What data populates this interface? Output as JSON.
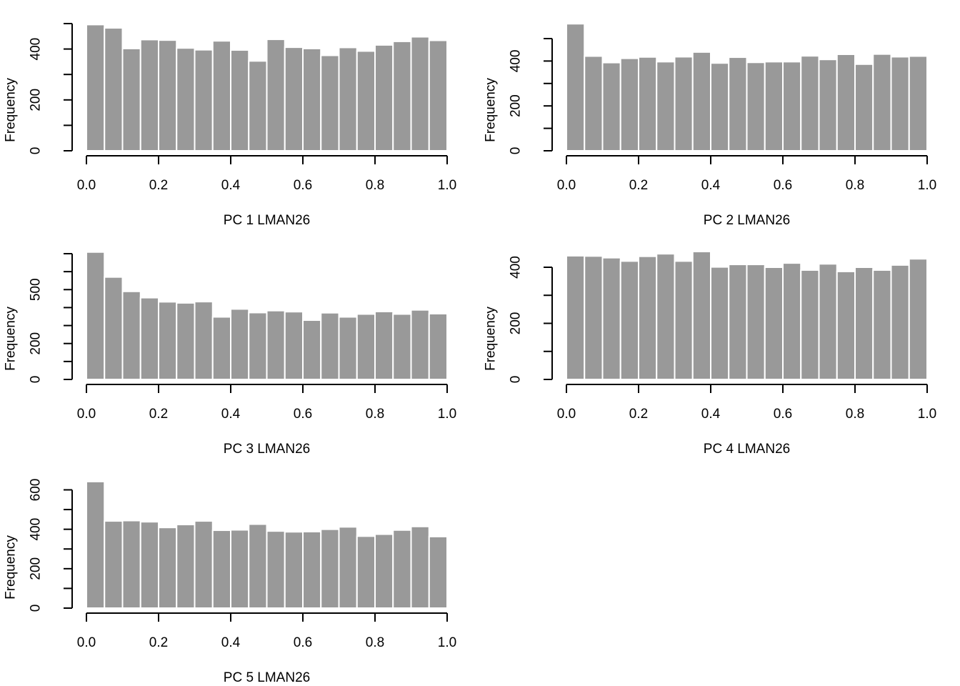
{
  "colors": {
    "bar": "#999999",
    "bar_border": "#ffffff",
    "axis": "#000000",
    "background": "#ffffff"
  },
  "chart_data": [
    {
      "type": "bar",
      "title": "",
      "xlabel": "PC 1 LMAN26",
      "ylabel": "Frequency",
      "bin_edges": [
        0.0,
        0.05,
        0.1,
        0.15,
        0.2,
        0.25,
        0.3,
        0.35,
        0.4,
        0.45,
        0.5,
        0.55,
        0.6,
        0.65,
        0.7,
        0.75,
        0.8,
        0.85,
        0.9,
        0.95,
        1.0
      ],
      "values": [
        496,
        483,
        402,
        437,
        435,
        404,
        397,
        432,
        396,
        353,
        438,
        407,
        402,
        375,
        406,
        392,
        416,
        430,
        448,
        434
      ],
      "xlim": [
        0,
        1
      ],
      "ylim": [
        0,
        500
      ],
      "xticks": [
        "0.0",
        "0.2",
        "0.4",
        "0.6",
        "0.8",
        "1.0"
      ],
      "yticks": [
        "0",
        "200",
        "400"
      ],
      "y_minor_ticks": [
        0,
        100,
        200,
        300,
        400,
        500
      ],
      "grid": false,
      "legend": "none"
    },
    {
      "type": "bar",
      "title": "",
      "xlabel": "PC 2 LMAN26",
      "ylabel": "Frequency",
      "bin_edges": [
        0.0,
        0.05,
        0.1,
        0.15,
        0.2,
        0.25,
        0.3,
        0.35,
        0.4,
        0.45,
        0.5,
        0.55,
        0.6,
        0.65,
        0.7,
        0.75,
        0.8,
        0.85,
        0.9,
        0.95,
        1.0
      ],
      "values": [
        566,
        422,
        393,
        412,
        418,
        397,
        419,
        440,
        391,
        417,
        394,
        397,
        397,
        423,
        407,
        430,
        386,
        431,
        419,
        422
      ],
      "xlim": [
        0,
        1
      ],
      "ylim": [
        0,
        500
      ],
      "xticks": [
        "0.0",
        "0.2",
        "0.4",
        "0.6",
        "0.8",
        "1.0"
      ],
      "yticks": [
        "0",
        "200",
        "400"
      ],
      "y_minor_ticks": [
        0,
        100,
        200,
        300,
        400,
        500
      ],
      "grid": false,
      "legend": "none"
    },
    {
      "type": "bar",
      "title": "",
      "xlabel": "PC 3 LMAN26",
      "ylabel": "Frequency",
      "bin_edges": [
        0.0,
        0.05,
        0.1,
        0.15,
        0.2,
        0.25,
        0.3,
        0.35,
        0.4,
        0.45,
        0.5,
        0.55,
        0.6,
        0.65,
        0.7,
        0.75,
        0.8,
        0.85,
        0.9,
        0.95,
        1.0
      ],
      "values": [
        709,
        570,
        490,
        455,
        432,
        426,
        433,
        348,
        392,
        372,
        383,
        377,
        330,
        371,
        348,
        364,
        378,
        364,
        387,
        366
      ],
      "xlim": [
        0,
        1
      ],
      "ylim": [
        0,
        700
      ],
      "xticks": [
        "0.0",
        "0.2",
        "0.4",
        "0.6",
        "0.8",
        "1.0"
      ],
      "yticks": [
        "0",
        "200",
        "500"
      ],
      "y_minor_ticks": [
        0,
        100,
        200,
        300,
        400,
        500,
        600,
        700
      ],
      "grid": false,
      "legend": "none"
    },
    {
      "type": "bar",
      "title": "",
      "xlabel": "PC 4 LMAN26",
      "ylabel": "Frequency",
      "bin_edges": [
        0.0,
        0.05,
        0.1,
        0.15,
        0.2,
        0.25,
        0.3,
        0.35,
        0.4,
        0.45,
        0.5,
        0.55,
        0.6,
        0.65,
        0.7,
        0.75,
        0.8,
        0.85,
        0.9,
        0.95,
        1.0
      ],
      "values": [
        441,
        440,
        434,
        422,
        439,
        448,
        422,
        456,
        401,
        410,
        410,
        400,
        415,
        390,
        412,
        385,
        400,
        390,
        408,
        430
      ],
      "xlim": [
        0,
        1
      ],
      "ylim": [
        0,
        400
      ],
      "xticks": [
        "0.0",
        "0.2",
        "0.4",
        "0.6",
        "0.8",
        "1.0"
      ],
      "yticks": [
        "0",
        "200",
        "400"
      ],
      "y_minor_ticks": [
        0,
        100,
        200,
        300,
        400
      ],
      "grid": false,
      "legend": "none"
    },
    {
      "type": "bar",
      "title": "",
      "xlabel": "PC 5 LMAN26",
      "ylabel": "Frequency",
      "bin_edges": [
        0.0,
        0.05,
        0.1,
        0.15,
        0.2,
        0.25,
        0.3,
        0.35,
        0.4,
        0.45,
        0.5,
        0.55,
        0.6,
        0.65,
        0.7,
        0.75,
        0.8,
        0.85,
        0.9,
        0.95,
        1.0
      ],
      "values": [
        642,
        442,
        444,
        438,
        409,
        424,
        442,
        395,
        397,
        426,
        391,
        387,
        388,
        400,
        412,
        365,
        375,
        396,
        414,
        363
      ],
      "xlim": [
        0,
        1
      ],
      "ylim": [
        0,
        600
      ],
      "xticks": [
        "0.0",
        "0.2",
        "0.4",
        "0.6",
        "0.8",
        "1.0"
      ],
      "yticks": [
        "0",
        "200",
        "400",
        "600"
      ],
      "y_minor_ticks": [
        0,
        100,
        200,
        300,
        400,
        500,
        600
      ],
      "grid": false,
      "legend": "none"
    }
  ]
}
